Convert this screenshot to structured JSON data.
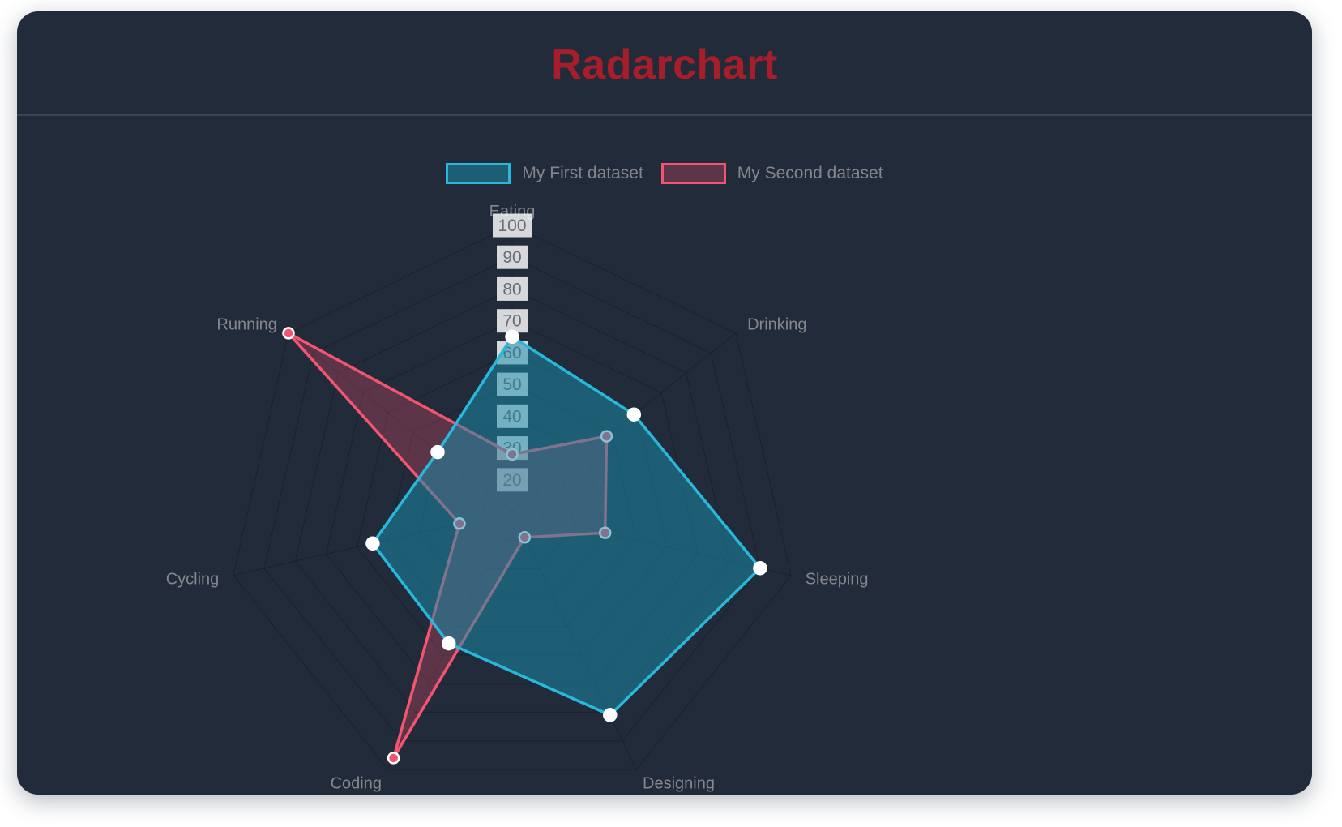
{
  "page": {
    "title": "Radarchart"
  },
  "colors": {
    "page_background": "#ffffff",
    "card_background": "#222b3a",
    "divider": "#3a4355",
    "title": "#a71d2a",
    "legend_text": "#83868d",
    "axis_label_text": "#84878e",
    "tick_text": "#696c70",
    "tick_backdrop": "rgba(255,255,255,0.82)",
    "grid_line": "rgba(0,0,0,0.22)"
  },
  "chart_data": {
    "type": "radar",
    "title": "Radarchart",
    "categories": [
      "Eating",
      "Drinking",
      "Sleeping",
      "Designing",
      "Coding",
      "Cycling",
      "Running"
    ],
    "series": [
      {
        "name": "My First dataset",
        "values": [
          65,
          59,
          90,
          81,
          56,
          55,
          40
        ],
        "border_color": "#27b8dc",
        "fill_color": "rgba(25,142,170,0.52)",
        "point_color": "#ffffff",
        "point_border_color": "#ffffff"
      },
      {
        "name": "My Second dataset",
        "values": [
          28,
          48,
          40,
          19,
          96,
          27,
          100
        ],
        "border_color": "#f3546f",
        "fill_color": "rgba(244,83,110,0.28)",
        "point_color": "#f3546f",
        "point_border_color": "#ffffff"
      }
    ],
    "scale": {
      "min": 10,
      "max": 100,
      "step": 10,
      "visible_tick_labels": [
        20,
        30,
        40,
        50,
        60,
        70,
        80,
        90,
        100
      ]
    },
    "legend_position": "top",
    "grid": true,
    "axes_count": 7
  }
}
